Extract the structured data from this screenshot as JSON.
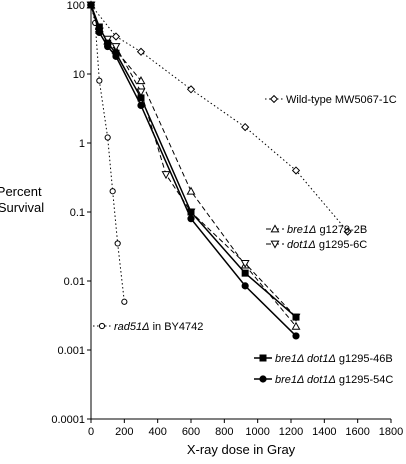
{
  "chart_data": {
    "type": "line",
    "title": "",
    "xlabel": "X-ray dose in Gray",
    "ylabel": "Percent Survival",
    "ylabel_lines": [
      "Percent",
      "Survival"
    ],
    "xlim": [
      0,
      1800
    ],
    "ylim": [
      0.0001,
      100
    ],
    "y_scale": "log",
    "grid": false,
    "x_ticks": [
      0,
      200,
      400,
      600,
      800,
      1000,
      1200,
      1400,
      1600,
      1800
    ],
    "y_ticks": [
      100,
      10,
      1,
      0.1,
      0.01,
      0.001,
      0.0001
    ],
    "x_tick_labels": [
      "0",
      "200",
      "400",
      "600",
      "800",
      "1000",
      "1200",
      "1400",
      "1600",
      "1800"
    ],
    "y_tick_labels": [
      "100",
      "10",
      "1",
      "0.1",
      "0.01",
      "0.001",
      "0.0001"
    ],
    "series": [
      {
        "name": "Wild-type MW5067-1C",
        "label_parts": [
          {
            "text": "Wild-type MW5067-1C",
            "italic": false
          }
        ],
        "marker": "diamond-open",
        "line": "dotted",
        "x": [
          0,
          150,
          300,
          600,
          925,
          1230,
          1540
        ],
        "y": [
          100,
          35,
          21,
          6,
          1.7,
          0.4,
          0.052
        ]
      },
      {
        "name": "rad51Δ in BY4742",
        "label_parts": [
          {
            "text": "rad51Δ",
            "italic": true
          },
          {
            "text": " in BY4742",
            "italic": false
          }
        ],
        "marker": "circle-open",
        "line": "dotted",
        "x": [
          0,
          25,
          50,
          100,
          130,
          160,
          200
        ],
        "y": [
          100,
          55,
          8,
          1.2,
          0.2,
          0.035,
          0.005
        ]
      },
      {
        "name": "bre1Δ g1279-2B",
        "label_parts": [
          {
            "text": "bre1Δ",
            "italic": true
          },
          {
            "text": "  g1279-2B",
            "italic": false
          }
        ],
        "marker": "triangle-up-open",
        "line": "dashed",
        "x": [
          0,
          50,
          100,
          150,
          300,
          600,
          925,
          1230
        ],
        "y": [
          100,
          45,
          30,
          22,
          8,
          0.2,
          0.017,
          0.0022
        ]
      },
      {
        "name": "dot1Δ g1295-6C",
        "label_parts": [
          {
            "text": "dot1Δ",
            "italic": true
          },
          {
            "text": "  g1295-6C",
            "italic": false
          }
        ],
        "marker": "triangle-down-open",
        "line": "dashed",
        "x": [
          0,
          50,
          100,
          150,
          300,
          450,
          600,
          925,
          1230
        ],
        "y": [
          100,
          42,
          32,
          25,
          5.5,
          0.35,
          0.1,
          0.018,
          0.003
        ]
      },
      {
        "name": "bre1Δ dot1Δ g1295-46B",
        "label_parts": [
          {
            "text": "bre1Δ dot1Δ",
            "italic": true
          },
          {
            "text": "  g1295-46B",
            "italic": false
          }
        ],
        "marker": "square-filled",
        "line": "solid",
        "x": [
          0,
          50,
          100,
          150,
          300,
          600,
          925,
          1230
        ],
        "y": [
          100,
          48,
          28,
          20,
          4.5,
          0.1,
          0.013,
          0.003
        ]
      },
      {
        "name": "bre1Δ dot1Δ g1295-54C",
        "label_parts": [
          {
            "text": "bre1Δ dot1Δ",
            "italic": true
          },
          {
            "text": "  g1295-54C",
            "italic": false
          }
        ],
        "marker": "circle-filled",
        "line": "solid",
        "x": [
          0,
          50,
          100,
          150,
          300,
          600,
          925,
          1230
        ],
        "y": [
          100,
          40,
          25,
          18,
          3.5,
          0.08,
          0.0085,
          0.0016
        ]
      }
    ]
  }
}
